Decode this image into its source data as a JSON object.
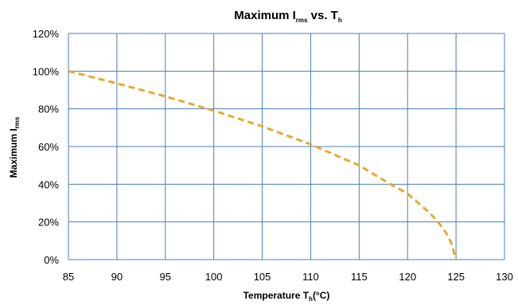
{
  "chart_data": {
    "type": "line",
    "title": {
      "main": "Maximum I",
      "main_sub": "rms",
      "mid": " vs. T",
      "mid_sub": "h"
    },
    "xlabel": {
      "main": "Temperature T",
      "sub": "h",
      "tail": "(°C)"
    },
    "ylabel": {
      "main": "Maximum I",
      "sub": "rms"
    },
    "xlim": [
      85,
      130
    ],
    "ylim": [
      0,
      120
    ],
    "x_ticks": [
      "85",
      "90",
      "95",
      "100",
      "105",
      "110",
      "115",
      "120",
      "125",
      "130"
    ],
    "y_ticks": [
      "0%",
      "20%",
      "40%",
      "60%",
      "80%",
      "100%",
      "120%"
    ],
    "grid": true,
    "series": [
      {
        "color": "#E8A930",
        "line_style": "dashed",
        "x": [
          85,
          90,
          95,
          100,
          105,
          110,
          115,
          118,
          120,
          122,
          123,
          124,
          124.5,
          125
        ],
        "y": [
          100,
          93.5,
          86.6,
          79,
          70.7,
          61.2,
          50,
          40.7,
          35,
          26,
          21,
          14,
          9,
          0
        ]
      }
    ],
    "colors": {
      "grid": "#4A7EBB",
      "series": "#E8A930"
    }
  }
}
